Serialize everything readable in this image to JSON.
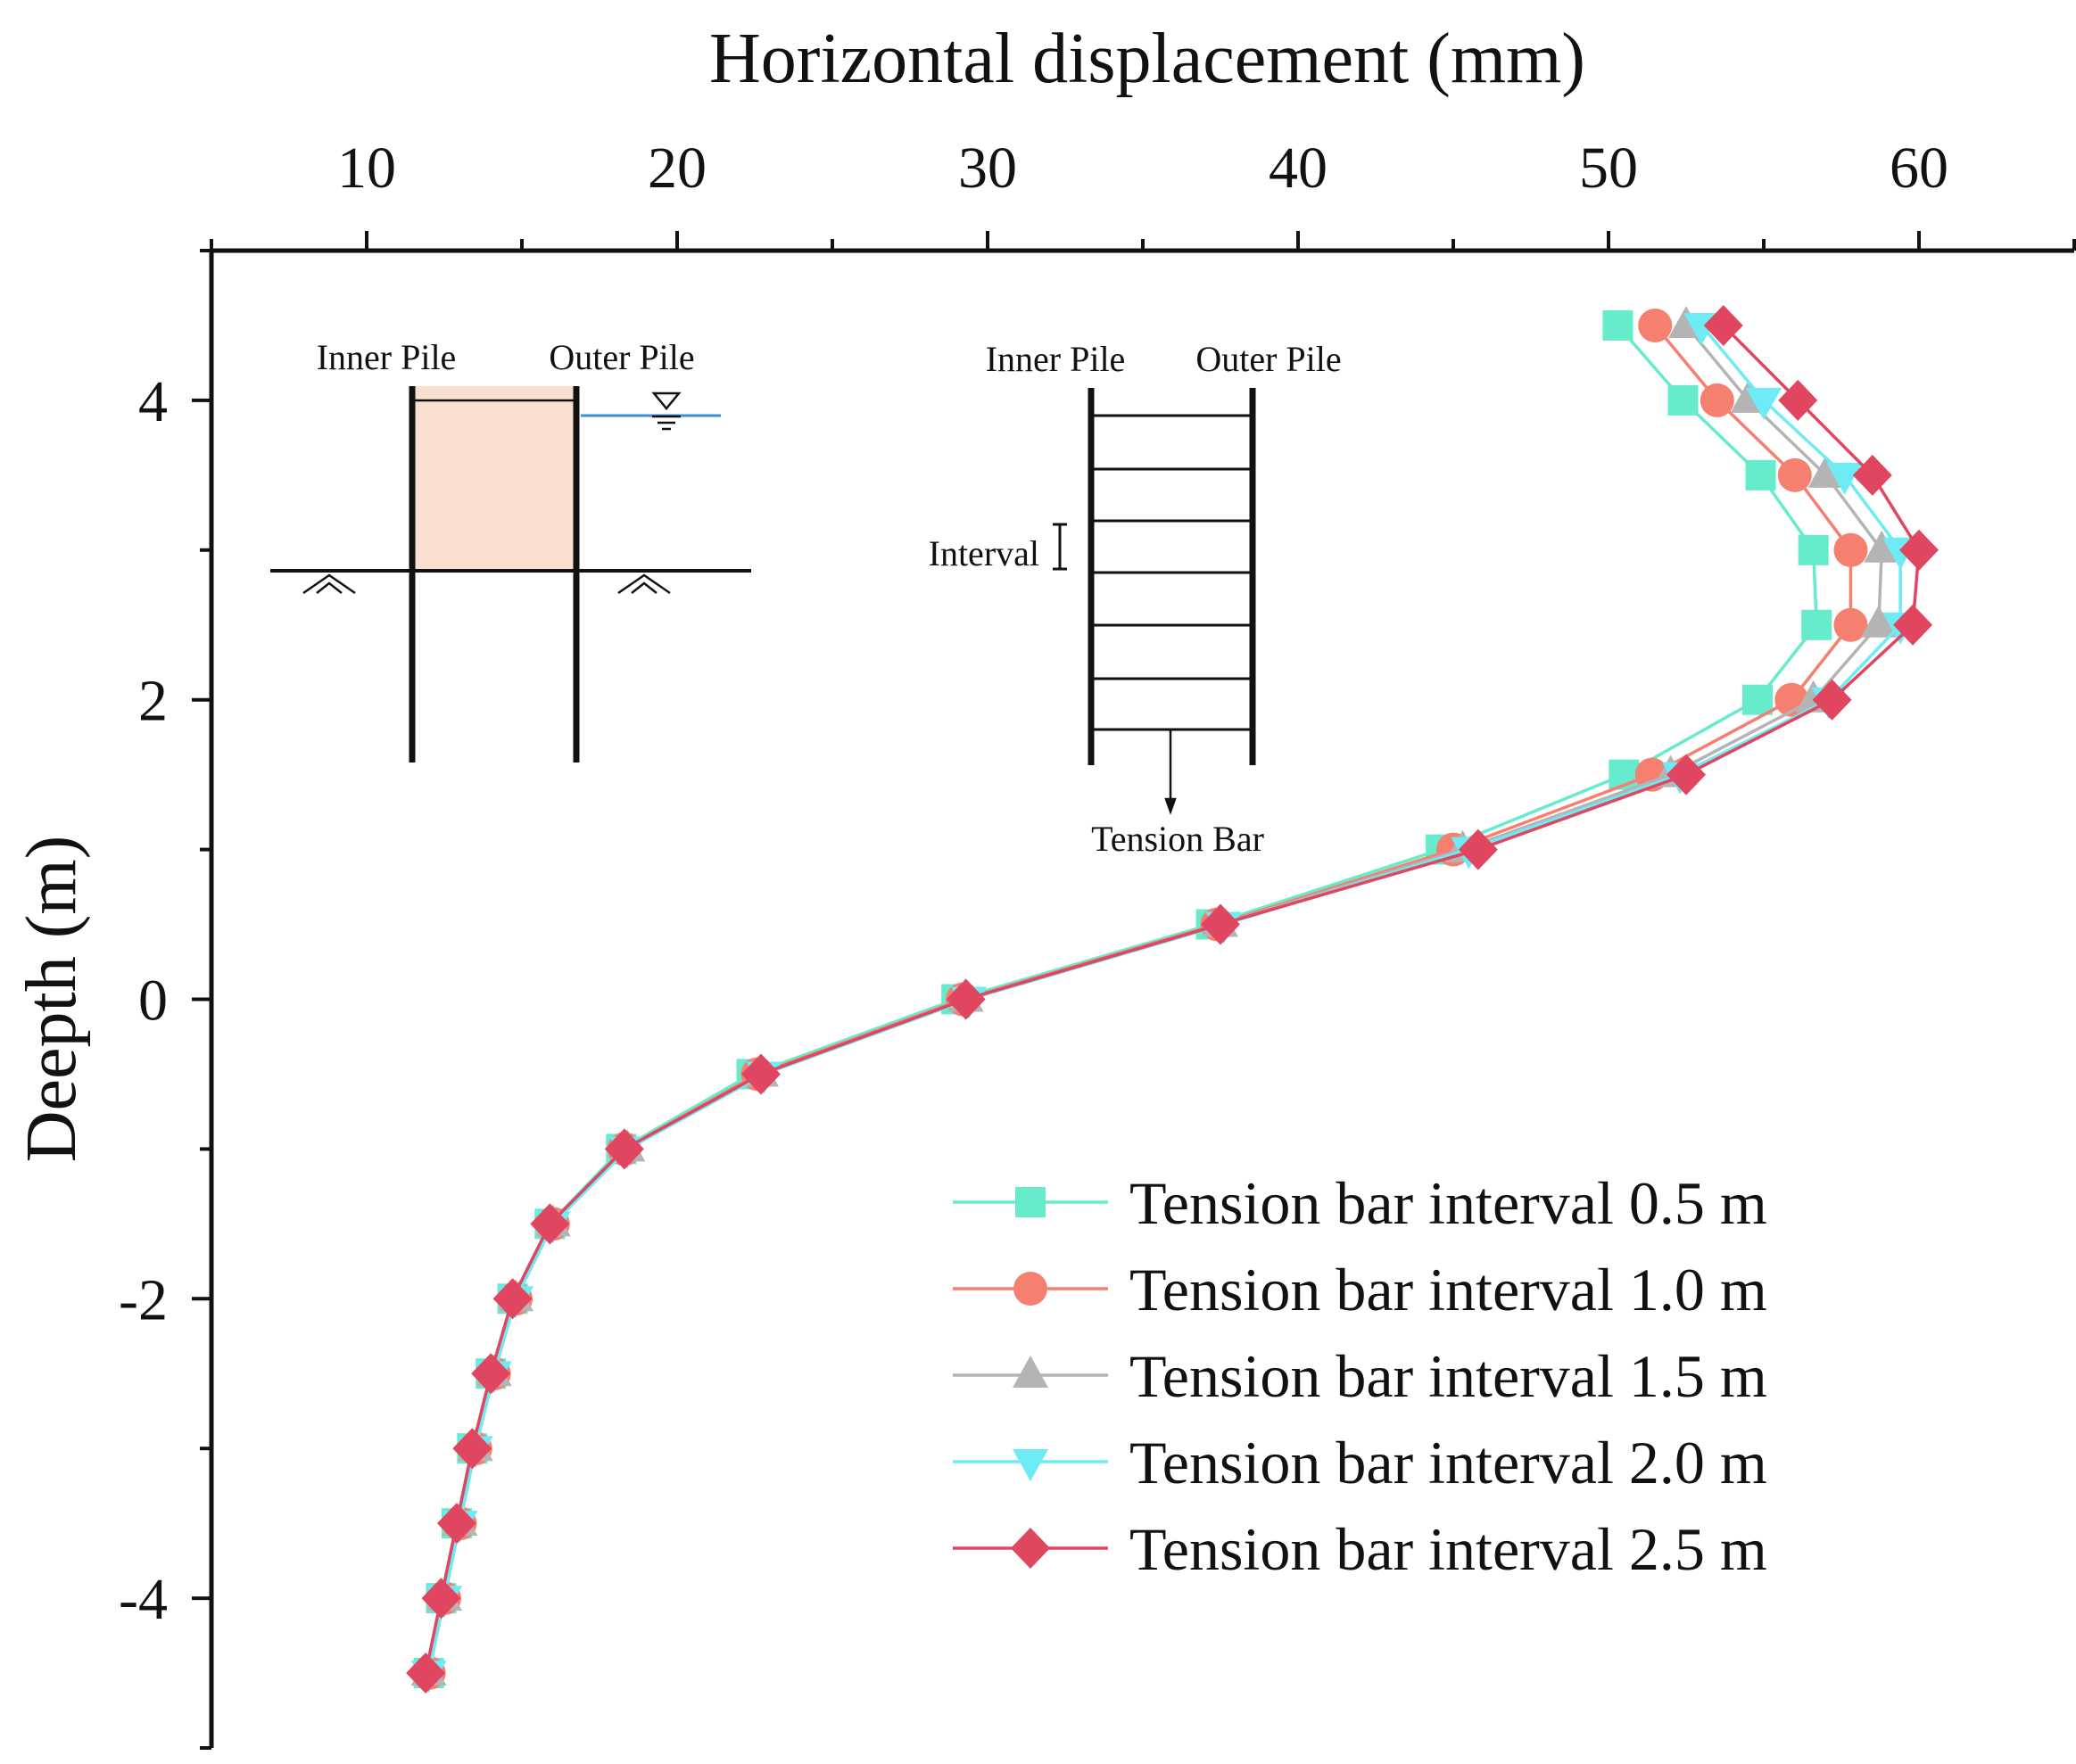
{
  "chart_data": {
    "type": "line",
    "title": "",
    "xlabel": "Horizontal displacement (mm)",
    "ylabel": "Deepth (m)",
    "xlim": [
      5,
      65
    ],
    "ylim": [
      -5,
      5
    ],
    "x_ticks": [
      10,
      20,
      30,
      40,
      50,
      60
    ],
    "y_ticks": [
      4,
      2,
      0,
      -2,
      -4
    ],
    "x_axis_position": "top",
    "grid": false,
    "legend_position": "bottom-right",
    "y": [
      4.5,
      4.0,
      3.5,
      3.0,
      2.5,
      2.0,
      1.5,
      1.0,
      0.5,
      0.0,
      -0.5,
      -1.0,
      -1.5,
      -2.0,
      -2.5,
      -3.0,
      -3.5,
      -4.0,
      -4.5
    ],
    "series": [
      {
        "name": "Tension bar interval 0.5 m",
        "marker": "square",
        "color": "#66EBCC",
        "x": [
          50.3,
          52.4,
          54.9,
          56.6,
          56.7,
          54.8,
          50.5,
          44.6,
          37.2,
          29.0,
          22.4,
          18.2,
          15.9,
          14.7,
          14.0,
          13.4,
          12.9,
          12.4,
          12.0
        ]
      },
      {
        "name": "Tension bar interval 1.0 m",
        "marker": "circle",
        "color": "#F5806F",
        "x": [
          51.5,
          53.5,
          56.0,
          57.8,
          57.8,
          55.9,
          51.4,
          45.0,
          37.4,
          29.2,
          22.6,
          18.3,
          16.0,
          14.8,
          14.1,
          13.5,
          13.0,
          12.5,
          12.0
        ]
      },
      {
        "name": "Tension bar interval 1.5 m",
        "marker": "triangle-up",
        "color": "#B4B4B4",
        "x": [
          52.5,
          54.5,
          57.0,
          58.8,
          58.7,
          56.6,
          52.0,
          45.3,
          37.5,
          29.3,
          22.7,
          18.4,
          16.0,
          14.8,
          14.1,
          13.5,
          13.0,
          12.5,
          12.0
        ]
      },
      {
        "name": "Tension bar interval 2.0 m",
        "marker": "triangle-down",
        "color": "#6EEBF5",
        "x": [
          53.0,
          55.0,
          57.6,
          59.4,
          59.4,
          57.1,
          52.3,
          45.5,
          37.6,
          29.4,
          22.8,
          18.4,
          16.0,
          14.8,
          14.1,
          13.5,
          13.0,
          12.5,
          12.0
        ]
      },
      {
        "name": "Tension bar interval 2.5 m",
        "marker": "diamond",
        "color": "#E04660",
        "x": [
          53.7,
          56.1,
          58.5,
          60.0,
          59.8,
          57.2,
          52.5,
          45.8,
          37.5,
          29.3,
          22.7,
          18.3,
          15.9,
          14.7,
          14.0,
          13.4,
          12.9,
          12.4,
          11.9
        ]
      }
    ],
    "inset_left": {
      "inner_label": "Inner Pile",
      "outer_label": "Outer Pile"
    },
    "inset_right": {
      "inner_label": "Inner Pile",
      "outer_label": "Outer Pile",
      "interval_label": "Interval",
      "bar_label": "Tension Bar"
    }
  }
}
